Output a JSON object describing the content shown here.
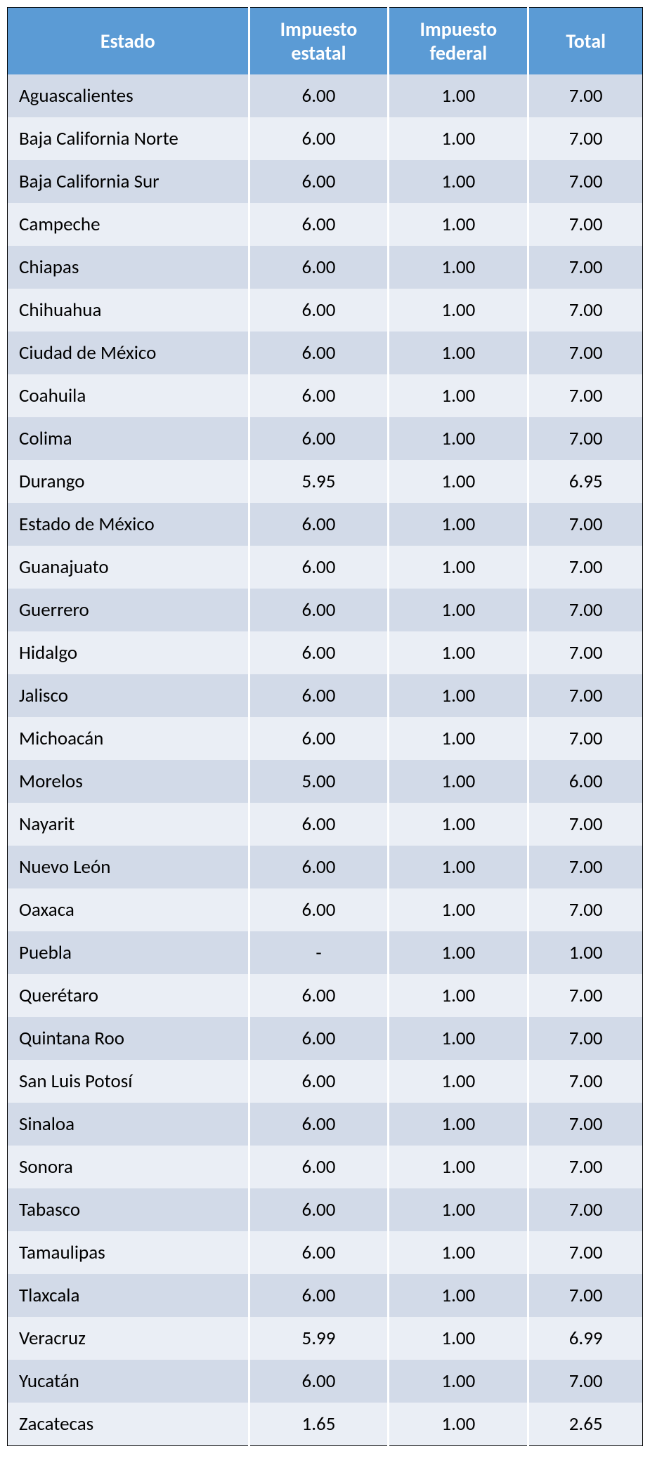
{
  "table": {
    "columns": [
      "Estado",
      "Impuesto estatal",
      "Impuesto federal",
      "Total"
    ],
    "rows": [
      [
        "Aguascalientes",
        "6.00",
        "1.00",
        "7.00"
      ],
      [
        "Baja California Norte",
        "6.00",
        "1.00",
        "7.00"
      ],
      [
        "Baja California Sur",
        "6.00",
        "1.00",
        "7.00"
      ],
      [
        "Campeche",
        "6.00",
        "1.00",
        "7.00"
      ],
      [
        "Chiapas",
        "6.00",
        "1.00",
        "7.00"
      ],
      [
        "Chihuahua",
        "6.00",
        "1.00",
        "7.00"
      ],
      [
        "Ciudad de México",
        "6.00",
        "1.00",
        "7.00"
      ],
      [
        "Coahuila",
        "6.00",
        "1.00",
        "7.00"
      ],
      [
        "Colima",
        "6.00",
        "1.00",
        "7.00"
      ],
      [
        "Durango",
        "5.95",
        "1.00",
        "6.95"
      ],
      [
        "Estado de México",
        "6.00",
        "1.00",
        "7.00"
      ],
      [
        "Guanajuato",
        "6.00",
        "1.00",
        "7.00"
      ],
      [
        "Guerrero",
        "6.00",
        "1.00",
        "7.00"
      ],
      [
        "Hidalgo",
        "6.00",
        "1.00",
        "7.00"
      ],
      [
        "Jalisco",
        "6.00",
        "1.00",
        "7.00"
      ],
      [
        "Michoacán",
        "6.00",
        "1.00",
        "7.00"
      ],
      [
        "Morelos",
        "5.00",
        "1.00",
        "6.00"
      ],
      [
        "Nayarit",
        "6.00",
        "1.00",
        "7.00"
      ],
      [
        "Nuevo León",
        "6.00",
        "1.00",
        "7.00"
      ],
      [
        "Oaxaca",
        "6.00",
        "1.00",
        "7.00"
      ],
      [
        "Puebla",
        "-",
        "1.00",
        "1.00"
      ],
      [
        "Querétaro",
        "6.00",
        "1.00",
        "7.00"
      ],
      [
        "Quintana Roo",
        "6.00",
        "1.00",
        "7.00"
      ],
      [
        "San Luis Potosí",
        "6.00",
        "1.00",
        "7.00"
      ],
      [
        "Sinaloa",
        "6.00",
        "1.00",
        "7.00"
      ],
      [
        "Sonora",
        "6.00",
        "1.00",
        "7.00"
      ],
      [
        "Tabasco",
        "6.00",
        "1.00",
        "7.00"
      ],
      [
        "Tamaulipas",
        "6.00",
        "1.00",
        "7.00"
      ],
      [
        "Tlaxcala",
        "6.00",
        "1.00",
        "7.00"
      ],
      [
        "Veracruz",
        "5.99",
        "1.00",
        "6.99"
      ],
      [
        "Yucatán",
        "6.00",
        "1.00",
        "7.00"
      ],
      [
        "Zacatecas",
        "1.65",
        "1.00",
        "2.65"
      ]
    ],
    "header_bg_color": "#5b9bd5",
    "header_text_color": "#ffffff",
    "row_odd_bg": "#d2dae8",
    "row_even_bg": "#eaeef5",
    "separator_color": "#ffffff",
    "border_color": "#000000",
    "header_fontsize": 28,
    "cell_fontsize": 27
  }
}
